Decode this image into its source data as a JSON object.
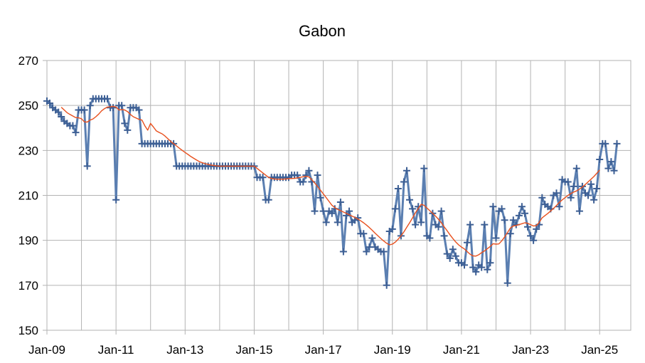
{
  "chart_data": {
    "type": "line",
    "title": "Gabon",
    "xlabel": "",
    "ylabel": "",
    "ylim": [
      150,
      270
    ],
    "yticks": [
      150,
      170,
      190,
      210,
      230,
      250,
      270
    ],
    "xticks": [
      "Jan-09",
      "Jan-11",
      "Jan-13",
      "Jan-15",
      "Jan-17",
      "Jan-19",
      "Jan-21",
      "Jan-23",
      "Jan-25"
    ],
    "grid": true,
    "legend": "none",
    "start": "2009-01",
    "series": [
      {
        "color": "#5b7fb1",
        "marker": "+",
        "values": [
          252,
          251,
          249,
          248,
          247,
          245,
          243,
          242,
          241,
          241,
          238,
          248,
          248,
          248,
          223,
          250,
          253,
          253,
          253,
          253,
          253,
          253,
          249,
          249,
          208,
          250,
          250,
          242,
          239,
          249,
          249,
          249,
          248,
          233,
          233,
          233,
          233,
          233,
          233,
          233,
          233,
          233,
          233,
          233,
          233,
          223,
          223,
          223,
          223,
          223,
          223,
          223,
          223,
          223,
          223,
          223,
          223,
          223,
          223,
          223,
          223,
          223,
          223,
          223,
          223,
          223,
          223,
          223,
          223,
          223,
          223,
          223,
          223,
          218,
          218,
          218,
          208,
          208,
          218,
          218,
          218,
          218,
          218,
          218,
          218,
          219,
          219,
          219,
          216,
          216,
          219,
          221,
          216,
          203,
          219,
          209,
          203,
          198,
          203,
          202,
          204,
          198,
          207,
          185,
          201,
          203,
          198,
          199,
          200,
          193,
          193,
          185,
          187,
          191,
          187,
          186,
          185,
          185,
          170,
          194,
          195,
          204,
          213,
          192,
          216,
          221,
          208,
          204,
          197,
          205,
          198,
          222,
          192,
          191,
          202,
          197,
          196,
          203,
          192,
          184,
          182,
          186,
          183,
          180,
          180,
          179,
          189,
          197,
          178,
          176,
          179,
          178,
          197,
          177,
          180,
          205,
          191,
          203,
          204,
          199,
          171,
          193,
          199,
          197,
          201,
          205,
          202,
          196,
          192,
          190,
          195,
          197,
          209,
          206,
          205,
          204,
          210,
          211,
          205,
          217,
          216,
          216,
          209,
          214,
          222,
          203,
          214,
          211,
          210,
          215,
          208,
          213,
          226,
          233,
          233,
          222,
          225,
          221,
          233
        ]
      },
      {
        "color": "#e8501e",
        "marker": "none",
        "start_index": 5,
        "values": [
          249.2,
          248.0,
          246.8,
          246.0,
          245.3,
          244.6,
          244.5,
          244.1,
          242.7,
          242.6,
          243.5,
          244.0,
          245.0,
          246.2,
          247.6,
          248.6,
          249.3,
          249.4,
          249.6,
          249.3,
          248.0,
          248.2,
          248.0,
          247.3,
          246.0,
          245.0,
          244.4,
          243.8,
          243.5,
          241.0,
          239.0,
          242.0,
          240.4,
          238.7,
          238.0,
          237.4,
          236.4,
          235.2,
          234.0,
          233.0,
          232.0,
          231.0,
          230.0,
          229.1,
          228.2,
          227.3,
          226.5,
          225.7,
          225.0,
          224.5,
          224.1,
          223.8,
          223.5,
          223.3,
          223.1,
          223.0,
          223.0,
          223.0,
          223.0,
          223.0,
          223.0,
          223.0,
          223.0,
          223.0,
          223.0,
          223.0,
          223.0,
          223.0,
          222.0,
          221.0,
          220.0,
          219.0,
          218.0,
          217.5,
          217.3,
          217.2,
          217.2,
          217.2,
          217.3,
          217.4,
          217.5,
          217.6,
          217.8,
          218.0,
          218.3,
          218.5,
          218.2,
          217.0,
          215.5,
          214.0,
          212.3,
          210.7,
          209.0,
          207.3,
          205.6,
          204.6,
          203.8,
          203.2,
          202.6,
          202.0,
          201.4,
          200.8,
          200.2,
          199.5,
          198.7,
          197.8,
          196.8,
          195.7,
          194.5,
          193.2,
          192.0,
          190.8,
          189.7,
          188.7,
          188.0,
          188.3,
          189.2,
          190.5,
          192.0,
          193.8,
          195.8,
          197.8,
          200.0,
          202.2,
          204.2,
          206.0,
          205.6,
          204.4,
          203.2,
          202.0,
          200.8,
          199.4,
          197.8,
          196.0,
          194.3,
          192.5,
          190.8,
          189.3,
          188.0,
          187.0,
          186.2,
          185.0,
          183.8,
          183.1,
          183.0,
          183.6,
          184.5,
          185.3,
          186.3,
          187.3,
          188.5,
          188.3,
          188.4,
          189.8,
          191.5,
          193.5,
          195.5,
          196.4,
          196.6,
          197.0,
          197.4,
          197.8,
          197.6,
          197.0,
          196.4,
          196.5,
          198.0,
          200.0,
          201.0,
          202.0,
          203.1,
          204.2,
          205.5,
          206.9,
          208.0,
          209.0,
          210.0,
          210.8,
          211.5,
          212.0,
          212.8,
          213.7,
          214.8,
          216.0,
          217.2,
          218.4,
          219.8,
          221.3
        ]
      }
    ]
  }
}
